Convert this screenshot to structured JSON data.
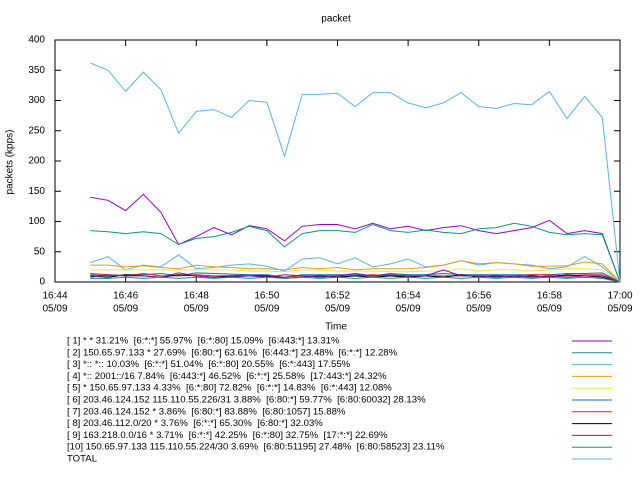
{
  "chart_data": {
    "type": "line",
    "title": "packet",
    "y_label": "packets (kpps)",
    "x_label": "Time",
    "xlim": [
      44,
      60
    ],
    "ylim": [
      0,
      400
    ],
    "yticks": [
      0,
      50,
      100,
      150,
      200,
      250,
      300,
      350,
      400
    ],
    "xticks": [
      {
        "value": 44,
        "label": [
          "16:44",
          "05/09"
        ]
      },
      {
        "value": 46,
        "label": [
          "16:46",
          "05/09"
        ]
      },
      {
        "value": 48,
        "label": [
          "16:48",
          "05/09"
        ]
      },
      {
        "value": 50,
        "label": [
          "16:50",
          "05/09"
        ]
      },
      {
        "value": 52,
        "label": [
          "16:52",
          "05/09"
        ]
      },
      {
        "value": 54,
        "label": [
          "16:54",
          "05/09"
        ]
      },
      {
        "value": 56,
        "label": [
          "16:56",
          "05/09"
        ]
      },
      {
        "value": 58,
        "label": [
          "16:58",
          "05/09"
        ]
      },
      {
        "value": 60,
        "label": [
          "17:00",
          "05/09"
        ]
      }
    ],
    "x": [
      45,
      45.5,
      46,
      46.5,
      47,
      47.5,
      48,
      48.5,
      49,
      49.5,
      50,
      50.5,
      51,
      51.5,
      52,
      52.5,
      53,
      53.5,
      54,
      54.5,
      55,
      55.5,
      56,
      56.5,
      57,
      57.5,
      58,
      58.5,
      59,
      59.5,
      60
    ],
    "series": [
      {
        "name": "[ 1] * * 31.21%  [6:*:*] 55.97%  [6:*:80] 15.09%  [6:443:*] 13.31%",
        "color": "#9400d3",
        "values": [
          140,
          135,
          118,
          145,
          115,
          62,
          75,
          90,
          78,
          93,
          88,
          68,
          92,
          95,
          95,
          88,
          97,
          88,
          92,
          85,
          90,
          93,
          85,
          80,
          85,
          90,
          102,
          80,
          85,
          80,
          0
        ]
      },
      {
        "name": "[ 2] 150.65.97.133 * 27.69%  [6:80:*] 63.61%  [6:443:*] 23.48%  [6:*:*] 12.28%",
        "color": "#009e73",
        "values": [
          85,
          83,
          80,
          83,
          80,
          62,
          72,
          75,
          82,
          92,
          85,
          58,
          80,
          85,
          85,
          82,
          95,
          85,
          82,
          86,
          82,
          80,
          88,
          90,
          97,
          92,
          82,
          78,
          80,
          78,
          0
        ]
      },
      {
        "name": "[ 3] *:: *:: 10.03%  [6:*:*] 51.04%  [6:*:80] 20.55%  [6:*:443] 17.55%",
        "color": "#56b4e9",
        "values": [
          32,
          42,
          20,
          28,
          25,
          45,
          22,
          24,
          28,
          30,
          26,
          18,
          38,
          40,
          30,
          40,
          25,
          30,
          38,
          25,
          28,
          35,
          28,
          32,
          30,
          28,
          22,
          25,
          42,
          25,
          0
        ]
      },
      {
        "name": "[ 4] *:: 2001::/16 7.84%  [6:443:*] 46.52%  [6:*:*] 25.58%  [17:443:*] 24.32%",
        "color": "#e69f00",
        "values": [
          28,
          28,
          25,
          27,
          24,
          22,
          28,
          25,
          24,
          22,
          22,
          20,
          24,
          22,
          24,
          20,
          22,
          22,
          22,
          24,
          28,
          35,
          30,
          32,
          30,
          26,
          26,
          27,
          33,
          30,
          0
        ]
      },
      {
        "name": "[ 5] * 150.65.97.133 4.33%  [6:*:80] 72.82%  [6:*:*] 14.83%  [6:*:443] 12.08%",
        "color": "#f0e442",
        "values": [
          20,
          20,
          20,
          20,
          20,
          20,
          20,
          20,
          20,
          18,
          18,
          17,
          20,
          20,
          18,
          18,
          18,
          17,
          17,
          18,
          18,
          22,
          18,
          20,
          20,
          18,
          20,
          22,
          22,
          20,
          0
        ]
      },
      {
        "name": "[ 6] 203.46.124.152 115.110.55.226/31 3.88%  [6:80:*] 59.77%  [6:80:60032] 28.13%",
        "color": "#0072b2",
        "values": [
          12,
          10,
          12,
          12,
          14,
          10,
          15,
          14,
          13,
          12,
          12,
          8,
          12,
          12,
          12,
          12,
          10,
          14,
          12,
          12,
          14,
          12,
          12,
          12,
          12,
          12,
          12,
          14,
          14,
          15,
          0
        ]
      },
      {
        "name": "[ 7] 203.46.124.152 * 3.86%  [6:80:*] 83.88%  [6:80:1057] 15.88%",
        "color": "#e51e10",
        "values": [
          14,
          12,
          10,
          14,
          10,
          10,
          12,
          10,
          10,
          10,
          10,
          8,
          10,
          10,
          10,
          10,
          12,
          10,
          10,
          10,
          10,
          10,
          10,
          10,
          10,
          12,
          12,
          10,
          12,
          12,
          0
        ]
      },
      {
        "name": "[ 8] 203.46.112.0/20 * 3.76%  [6:*:*] 65.30%  [6:80:*] 32.03%",
        "color": "#000000",
        "values": [
          10,
          8,
          12,
          10,
          8,
          12,
          10,
          8,
          10,
          10,
          10,
          6,
          8,
          10,
          8,
          10,
          8,
          10,
          8,
          10,
          8,
          12,
          8,
          10,
          8,
          10,
          8,
          12,
          10,
          8,
          0
        ]
      },
      {
        "name": "[ 9] 163.218.0.0/16 * 3.71%  [6:*:*] 42.25%  [6:*:80] 32.75%  [17:*:*] 22.69%",
        "color": "#9400d3",
        "values": [
          8,
          12,
          10,
          10,
          8,
          15,
          10,
          8,
          8,
          10,
          8,
          12,
          10,
          8,
          10,
          14,
          10,
          12,
          10,
          10,
          20,
          10,
          10,
          8,
          10,
          8,
          10,
          8,
          10,
          10,
          0
        ]
      },
      {
        "name": "[10] 150.65.97.133 115.110.55.224/30 3.69%  [6:80:51195] 27.48%  [6:80:58523] 23.11%",
        "color": "#009e73",
        "values": [
          6,
          6,
          8,
          6,
          8,
          6,
          8,
          6,
          8,
          6,
          8,
          6,
          8,
          6,
          8,
          6,
          8,
          6,
          8,
          6,
          8,
          6,
          8,
          6,
          8,
          6,
          8,
          6,
          8,
          6,
          0
        ]
      },
      {
        "name": "TOTAL",
        "color": "#56b4e9",
        "values": [
          362,
          350,
          315,
          347,
          318,
          246,
          282,
          285,
          272,
          300,
          297,
          208,
          310,
          310,
          312,
          290,
          313,
          313,
          296,
          288,
          296,
          313,
          290,
          287,
          295,
          293,
          315,
          270,
          307,
          272,
          0
        ]
      }
    ]
  }
}
